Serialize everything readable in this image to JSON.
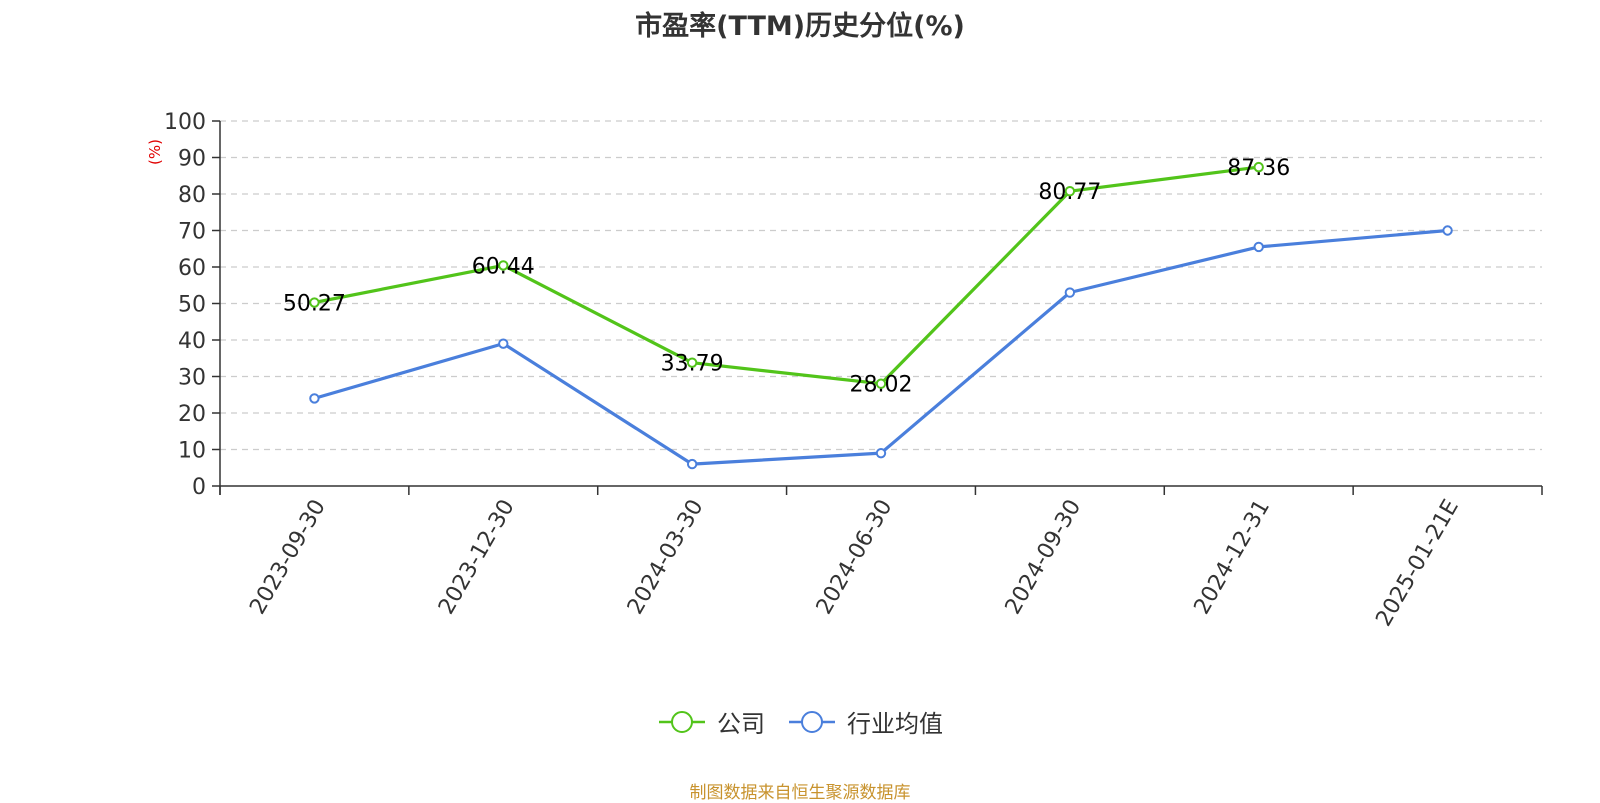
{
  "chart_data": {
    "type": "line",
    "title": "市盈率(TTM)历史分位(%)",
    "ylabel": "(%)",
    "xlabel": "",
    "ylim": [
      0,
      100
    ],
    "yticks": [
      0,
      10,
      20,
      30,
      40,
      50,
      60,
      70,
      80,
      90,
      100
    ],
    "grid": "horizontal dashed",
    "legend_position": "bottom",
    "categories": [
      "2023-09-30",
      "2023-12-30",
      "2024-03-30",
      "2024-06-30",
      "2024-09-30",
      "2024-12-31",
      "2025-01-21E"
    ],
    "series": [
      {
        "name": "公司",
        "color": "#52c41a",
        "values": [
          50.27,
          60.44,
          33.79,
          28.02,
          80.77,
          87.36,
          null
        ],
        "labels": [
          "50.27",
          "60.44",
          "33.79",
          "28.02",
          "80.77",
          "87.36",
          ""
        ]
      },
      {
        "name": "行业均值",
        "color": "#4a7fdc",
        "values": [
          24,
          39,
          6,
          9,
          53,
          65.5,
          70
        ],
        "labels": []
      }
    ]
  },
  "source_note": "制图数据来自恒生聚源数据库"
}
